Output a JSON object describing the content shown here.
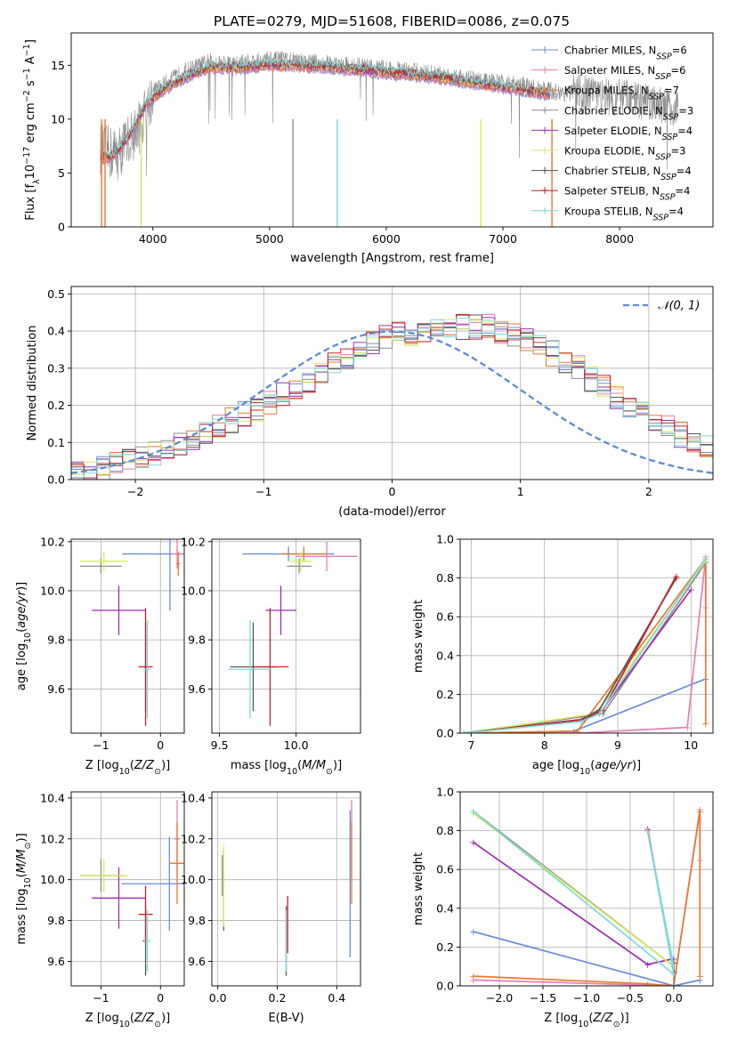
{
  "figure": {
    "title": "PLATE=0279, MJD=51608, FIBERID=0086, z=0.075"
  },
  "colors": {
    "Chabrier MILES": "#6a8ddf",
    "Salpeter MILES": "#e87fb0",
    "Kroupa MILES": "#e87a30",
    "Chabrier ELODIE": "#8e8e8e",
    "Salpeter ELODIE": "#9b30b0",
    "Kroupa ELODIE": "#d6ec60",
    "Chabrier STELIB": "#555555",
    "Salpeter STELIB": "#c8202a",
    "Kroupa STELIB": "#7fd8d8",
    "Normal": "#5b8bd6"
  },
  "chart_data": [
    {
      "id": "spectrum",
      "type": "line",
      "title": "PLATE=0279, MJD=51608, FIBERID=0086, z=0.075",
      "xlabel": "wavelength [Angstrom, rest frame]",
      "ylabel_parts": [
        "Flux [f",
        "λ",
        "10",
        "−17",
        " erg cm",
        "−2",
        " s",
        "−1",
        " A",
        "−1",
        "]"
      ],
      "xlim": [
        3300,
        8800
      ],
      "ylim": [
        0,
        18
      ],
      "xticks": [
        4000,
        5000,
        6000,
        7000,
        8000
      ],
      "yticks": [
        0,
        5,
        10,
        15
      ],
      "grid": false,
      "legend_position": "top-right",
      "legend": [
        {
          "name": "Chabrier MILES",
          "nssp": "6"
        },
        {
          "name": "Salpeter MILES",
          "nssp": "6"
        },
        {
          "name": "Kroupa MILES",
          "nssp": "7"
        },
        {
          "name": "Chabrier ELODIE",
          "nssp": "3"
        },
        {
          "name": "Salpeter ELODIE",
          "nssp": "4"
        },
        {
          "name": "Kroupa ELODIE",
          "nssp": "3"
        },
        {
          "name": "Chabrier STELIB",
          "nssp": "4"
        },
        {
          "name": "Salpeter STELIB",
          "nssp": "4"
        },
        {
          "name": "Kroupa STELIB",
          "nssp": "4"
        }
      ],
      "data_trend": {
        "x": [
          3550,
          3700,
          3900,
          4000,
          4100,
          4300,
          4500,
          4700,
          5000,
          5300,
          5600,
          6000,
          6300,
          6600,
          6900,
          7200,
          7400,
          7700,
          8000,
          8300,
          8500
        ],
        "y": [
          7.0,
          6.8,
          9.5,
          12.5,
          13.2,
          14.5,
          15.3,
          15.0,
          15.5,
          15.2,
          15.0,
          14.6,
          14.3,
          13.9,
          13.4,
          13.0,
          12.6,
          12.3,
          12.0,
          11.4,
          11.0
        ]
      },
      "model_trend": {
        "x": [
          3550,
          3650,
          3800,
          3950,
          4100,
          4300,
          4500,
          4700,
          5000,
          5300,
          5600,
          6000,
          6300,
          6600,
          6900,
          7200,
          7400
        ],
        "y": [
          6.5,
          6.4,
          8.5,
          11.5,
          12.8,
          14.0,
          14.8,
          14.7,
          15.0,
          14.9,
          14.7,
          14.3,
          14.0,
          13.6,
          13.1,
          12.6,
          12.3
        ]
      },
      "spikes": [
        {
          "x": 3560,
          "y": 0
        },
        {
          "x": 3590,
          "y": 0
        },
        {
          "x": 3900,
          "y": 0
        },
        {
          "x": 5200,
          "y": 0
        },
        {
          "x": 5580,
          "y": 0
        },
        {
          "x": 6810,
          "y": 0
        },
        {
          "x": 7420,
          "y": 0
        }
      ]
    },
    {
      "id": "residuals",
      "type": "line",
      "xlabel": "(data-model)/error",
      "ylabel": "Normed distribution",
      "xlim": [
        -2.5,
        2.5
      ],
      "ylim": [
        0,
        0.52
      ],
      "xticks": [
        -2,
        -1,
        0,
        1,
        2
      ],
      "xtick_labels": [
        "−2",
        "−1",
        "0",
        "1",
        "2"
      ],
      "yticks": [
        0.0,
        0.1,
        0.2,
        0.3,
        0.4,
        0.5
      ],
      "ytick_labels": [
        "0.0",
        "0.1",
        "0.2",
        "0.3",
        "0.4",
        "0.5"
      ],
      "grid": true,
      "legend_position": "top-right",
      "legend_label": "𝒩(0, 1)",
      "bin_width": 0.1,
      "bin_start": -2.5,
      "base_hist": [
        0.02,
        0.025,
        0.03,
        0.04,
        0.05,
        0.06,
        0.07,
        0.08,
        0.09,
        0.1,
        0.12,
        0.14,
        0.16,
        0.175,
        0.19,
        0.21,
        0.23,
        0.25,
        0.27,
        0.29,
        0.31,
        0.33,
        0.35,
        0.37,
        0.38,
        0.39,
        0.395,
        0.4,
        0.4,
        0.4,
        0.41,
        0.41,
        0.41,
        0.4,
        0.39,
        0.38,
        0.36,
        0.34,
        0.32,
        0.3,
        0.27,
        0.25,
        0.22,
        0.2,
        0.18,
        0.16,
        0.14,
        0.12,
        0.1,
        0.085
      ]
    },
    {
      "id": "age_vs_Z",
      "type": "scatter",
      "xlabel": "Z [log10(Z/Z☉)]",
      "ylabel": "age  [log10(age/yr)]",
      "xlim": [
        -1.5,
        0.4
      ],
      "ylim": [
        9.42,
        10.21
      ],
      "xticks": [
        -1,
        0
      ],
      "xtick_labels": [
        "−1",
        "0"
      ],
      "yticks": [
        9.6,
        9.8,
        10.0,
        10.2
      ],
      "ytick_labels": [
        "9.6",
        "9.8",
        "10.0",
        "10.2"
      ],
      "grid": true,
      "points": [
        {
          "series": "Chabrier MILES",
          "x": 0.16,
          "y": 10.15,
          "xerr": 0.8,
          "yerr": 0.23
        },
        {
          "series": "Salpeter MILES",
          "x": 0.28,
          "y": 10.15,
          "xerr": 0.1,
          "yerr": 0.06
        },
        {
          "series": "Kroupa MILES",
          "x": 0.3,
          "y": 10.11,
          "xerr": 0.03,
          "yerr": 0.05
        },
        {
          "series": "Chabrier ELODIE",
          "x": -1.0,
          "y": 10.1,
          "xerr": 0.35,
          "yerr": 0.03
        },
        {
          "series": "Salpeter ELODIE",
          "x": -0.7,
          "y": 9.92,
          "xerr": 0.45,
          "yerr": 0.1
        },
        {
          "series": "Kroupa ELODIE",
          "x": -0.95,
          "y": 10.12,
          "xerr": 0.4,
          "yerr": 0.04
        },
        {
          "series": "Chabrier STELIB",
          "x": -0.25,
          "y": 9.69,
          "xerr": 0.03,
          "yerr": 0.18
        },
        {
          "series": "Salpeter STELIB",
          "x": -0.25,
          "y": 9.69,
          "xerr": 0.12,
          "yerr": 0.24
        },
        {
          "series": "Kroupa STELIB",
          "x": -0.22,
          "y": 9.68,
          "xerr": 0.05,
          "yerr": 0.2
        }
      ]
    },
    {
      "id": "age_vs_mass",
      "type": "scatter",
      "xlabel": "mass [log10(M/M☉)]",
      "xlim": [
        9.45,
        10.42
      ],
      "ylim": [
        9.42,
        10.21
      ],
      "xticks": [
        9.5,
        10.0
      ],
      "xtick_labels": [
        "9.5",
        "10.0"
      ],
      "yticks": [
        9.6,
        9.8,
        10.0,
        10.2
      ],
      "ytick_labels": [
        "9.6",
        "9.8",
        "10.0",
        "10.2"
      ],
      "grid": true,
      "points": [
        {
          "series": "Chabrier MILES",
          "x": 9.95,
          "y": 10.15,
          "xerr": 0.3,
          "yerr": 0.03
        },
        {
          "series": "Salpeter MILES",
          "x": 10.2,
          "y": 10.14,
          "xerr": 0.2,
          "yerr": 0.06
        },
        {
          "series": "Kroupa MILES",
          "x": 10.05,
          "y": 10.15,
          "xerr": 0.15,
          "yerr": 0.03
        },
        {
          "series": "Chabrier ELODIE",
          "x": 10.02,
          "y": 10.1,
          "xerr": 0.08,
          "yerr": 0.03
        },
        {
          "series": "Salpeter ELODIE",
          "x": 9.9,
          "y": 9.92,
          "xerr": 0.1,
          "yerr": 0.1
        },
        {
          "series": "Kroupa ELODIE",
          "x": 10.03,
          "y": 10.12,
          "xerr": 0.07,
          "yerr": 0.04
        },
        {
          "series": "Chabrier STELIB",
          "x": 9.72,
          "y": 9.69,
          "xerr": 0.15,
          "yerr": 0.18
        },
        {
          "series": "Salpeter STELIB",
          "x": 9.83,
          "y": 9.69,
          "xerr": 0.12,
          "yerr": 0.24
        },
        {
          "series": "Kroupa STELIB",
          "x": 9.7,
          "y": 9.68,
          "xerr": 0.14,
          "yerr": 0.2
        }
      ]
    },
    {
      "id": "weight_vs_age",
      "type": "line",
      "xlabel": "age  [log10(age/yr)]",
      "ylabel": "mass weight",
      "xlim": [
        6.85,
        10.3
      ],
      "ylim": [
        0,
        1.0
      ],
      "xticks": [
        7,
        8,
        9,
        10
      ],
      "xtick_labels": [
        "7",
        "8",
        "9",
        "10"
      ],
      "yticks": [
        0.0,
        0.2,
        0.4,
        0.6,
        0.8,
        1.0
      ],
      "ytick_labels": [
        "0.0",
        "0.2",
        "0.4",
        "0.6",
        "0.8",
        "1.0"
      ],
      "grid": true,
      "series": [
        {
          "name": "Chabrier MILES",
          "x": [
            6.9,
            8.4,
            10.2
          ],
          "y": [
            0.0,
            0.01,
            0.28
          ]
        },
        {
          "name": "Salpeter MILES",
          "x": [
            6.9,
            8.45,
            9.95,
            10.2,
            10.2
          ],
          "y": [
            0.0,
            0.0,
            0.03,
            0.91,
            0.65
          ]
        },
        {
          "name": "Kroupa MILES",
          "x": [
            6.9,
            8.45,
            10.2,
            10.2
          ],
          "y": [
            0.0,
            0.01,
            0.9,
            0.05
          ]
        },
        {
          "name": "Chabrier ELODIE",
          "x": [
            6.9,
            8.8,
            10.2
          ],
          "y": [
            0.0,
            0.1,
            0.88
          ]
        },
        {
          "name": "Salpeter ELODIE",
          "x": [
            6.9,
            8.75,
            10.0
          ],
          "y": [
            0.0,
            0.1,
            0.74
          ]
        },
        {
          "name": "Kroupa ELODIE",
          "x": [
            6.9,
            8.7,
            10.2
          ],
          "y": [
            0.0,
            0.1,
            0.89
          ]
        },
        {
          "name": "Chabrier STELIB",
          "x": [
            6.9,
            8.5,
            8.75,
            9.8
          ],
          "y": [
            0.0,
            0.07,
            0.12,
            0.8
          ]
        },
        {
          "name": "Salpeter STELIB",
          "x": [
            6.9,
            8.55,
            8.8,
            9.8
          ],
          "y": [
            0.0,
            0.07,
            0.12,
            0.81
          ]
        },
        {
          "name": "Kroupa STELIB",
          "x": [
            6.9,
            8.5,
            8.75,
            10.2
          ],
          "y": [
            0.0,
            0.06,
            0.1,
            0.9
          ]
        }
      ]
    },
    {
      "id": "mass_vs_Z",
      "type": "scatter",
      "xlabel": "Z [log10(Z/Z☉)]",
      "ylabel": "mass [log10(M/M☉)]",
      "xlim": [
        -1.5,
        0.4
      ],
      "ylim": [
        9.48,
        10.43
      ],
      "xticks": [
        -1,
        0
      ],
      "xtick_labels": [
        "−1",
        "0"
      ],
      "yticks": [
        9.6,
        9.8,
        10.0,
        10.2,
        10.4
      ],
      "ytick_labels": [
        "9.6",
        "9.8",
        "10.0",
        "10.2",
        "10.4"
      ],
      "grid": true,
      "points": [
        {
          "series": "Chabrier MILES",
          "x": 0.15,
          "y": 9.98,
          "xerr": 0.8,
          "yerr": 0.23
        },
        {
          "series": "Salpeter MILES",
          "x": 0.28,
          "y": 10.2,
          "xerr": 0.05,
          "yerr": 0.19
        },
        {
          "series": "Kroupa MILES",
          "x": 0.28,
          "y": 10.08,
          "xerr": 0.12,
          "yerr": 0.2
        },
        {
          "series": "Chabrier ELODIE",
          "x": -1.0,
          "y": 10.02,
          "xerr": 0.35,
          "yerr": 0.08
        },
        {
          "series": "Salpeter ELODIE",
          "x": -0.7,
          "y": 9.91,
          "xerr": 0.45,
          "yerr": 0.15
        },
        {
          "series": "Kroupa ELODIE",
          "x": -0.95,
          "y": 10.02,
          "xerr": 0.4,
          "yerr": 0.08
        },
        {
          "series": "Chabrier STELIB",
          "x": -0.25,
          "y": 9.7,
          "xerr": 0.05,
          "yerr": 0.17
        },
        {
          "series": "Salpeter STELIB",
          "x": -0.25,
          "y": 9.83,
          "xerr": 0.12,
          "yerr": 0.14
        },
        {
          "series": "Kroupa STELIB",
          "x": -0.22,
          "y": 9.7,
          "xerr": 0.05,
          "yerr": 0.15
        }
      ]
    },
    {
      "id": "mass_vs_ebv",
      "type": "scatter",
      "xlabel": "E(B-V)",
      "xlim": [
        -0.02,
        0.48
      ],
      "ylim": [
        9.48,
        10.43
      ],
      "xticks": [
        0.0,
        0.2,
        0.4
      ],
      "xtick_labels": [
        "0.0",
        "0.2",
        "0.4"
      ],
      "yticks": [
        9.6,
        9.8,
        10.0,
        10.2,
        10.4
      ],
      "ytick_labels": [
        "9.6",
        "9.8",
        "10.0",
        "10.2",
        "10.4"
      ],
      "grid": true,
      "points": [
        {
          "series": "Chabrier MILES",
          "x": 0.445,
          "y": 9.98,
          "xerr": 0.0,
          "yerr": 0.36
        },
        {
          "series": "Salpeter MILES",
          "x": 0.45,
          "y": 10.2,
          "xerr": 0.0,
          "yerr": 0.19
        },
        {
          "series": "Kroupa MILES",
          "x": 0.45,
          "y": 10.08,
          "xerr": 0.0,
          "yerr": 0.2
        },
        {
          "series": "Chabrier ELODIE",
          "x": 0.015,
          "y": 10.02,
          "xerr": 0.0,
          "yerr": 0.1
        },
        {
          "series": "Salpeter ELODIE",
          "x": 0.02,
          "y": 9.95,
          "xerr": 0.0,
          "yerr": 0.2
        },
        {
          "series": "Kroupa ELODIE",
          "x": 0.02,
          "y": 9.97,
          "xerr": 0.0,
          "yerr": 0.2
        },
        {
          "series": "Chabrier STELIB",
          "x": 0.23,
          "y": 9.7,
          "xerr": 0.0,
          "yerr": 0.17
        },
        {
          "series": "Salpeter STELIB",
          "x": 0.235,
          "y": 9.78,
          "xerr": 0.0,
          "yerr": 0.14
        },
        {
          "series": "Kroupa STELIB",
          "x": 0.23,
          "y": 9.7,
          "xerr": 0.0,
          "yerr": 0.15
        }
      ]
    },
    {
      "id": "weight_vs_Z",
      "type": "line",
      "xlabel": "Z [log10(Z/Z☉)]",
      "ylabel": "mass weight",
      "xlim": [
        -2.45,
        0.45
      ],
      "ylim": [
        0,
        1.0
      ],
      "xticks": [
        -2.0,
        -1.5,
        -1.0,
        -0.5,
        0.0
      ],
      "xtick_labels": [
        "−2.0",
        "−1.5",
        "−1.0",
        "−0.5",
        "0.0"
      ],
      "yticks": [
        0.0,
        0.2,
        0.4,
        0.6,
        0.8,
        1.0
      ],
      "ytick_labels": [
        "0.0",
        "0.2",
        "0.4",
        "0.6",
        "0.8",
        "1.0"
      ],
      "grid": true,
      "series": [
        {
          "name": "Chabrier MILES",
          "x": [
            -2.3,
            0.0,
            0.3
          ],
          "y": [
            0.28,
            0.0,
            0.03
          ]
        },
        {
          "name": "Salpeter MILES",
          "x": [
            -2.3,
            0.0,
            0.3,
            0.3
          ],
          "y": [
            0.03,
            0.0,
            0.91,
            0.65
          ]
        },
        {
          "name": "Kroupa MILES",
          "x": [
            -2.3,
            -0.3,
            0.0,
            0.3,
            0.3
          ],
          "y": [
            0.05,
            0.01,
            0.0,
            0.9,
            0.05
          ]
        },
        {
          "name": "Chabrier ELODIE",
          "x": [
            -2.3,
            0.0,
            0.0
          ],
          "y": [
            0.9,
            0.1,
            0.0
          ]
        },
        {
          "name": "Salpeter ELODIE",
          "x": [
            -2.3,
            -0.3,
            0.0
          ],
          "y": [
            0.74,
            0.11,
            0.14
          ]
        },
        {
          "name": "Kroupa ELODIE",
          "x": [
            -2.3,
            0.0
          ],
          "y": [
            0.89,
            0.1
          ]
        },
        {
          "name": "Chabrier STELIB",
          "x": [
            -0.3,
            0.0,
            0.0
          ],
          "y": [
            0.8,
            0.07,
            0.12
          ]
        },
        {
          "name": "Salpeter STELIB",
          "x": [
            -0.3,
            0.0,
            0.0
          ],
          "y": [
            0.81,
            0.07,
            0.12
          ]
        },
        {
          "name": "Kroupa STELIB",
          "x": [
            -2.3,
            0.0,
            -0.3,
            0.0
          ],
          "y": [
            0.9,
            0.06,
            0.8,
            0.1
          ]
        }
      ]
    }
  ]
}
